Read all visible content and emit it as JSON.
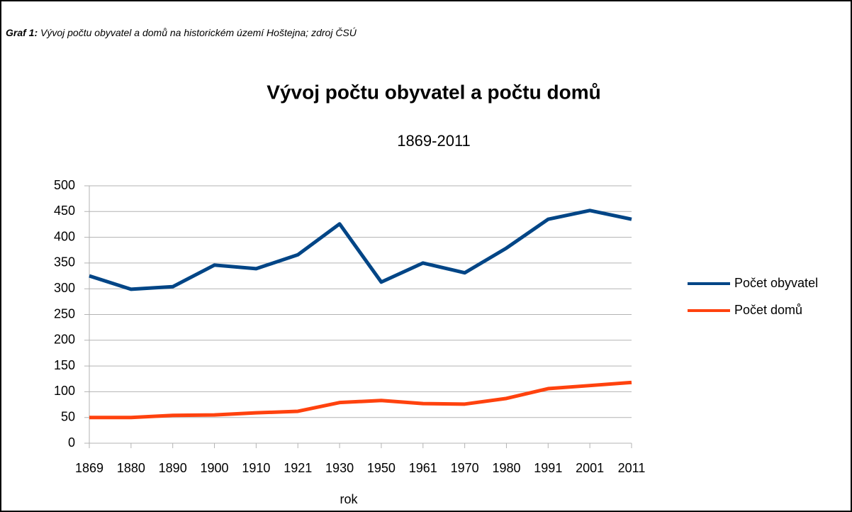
{
  "caption": {
    "label": "Graf 1:",
    "text": "Vývoj počtu obyvatel a domů na historickém území Hoštejna; zdroj ČSÚ"
  },
  "chart_data": {
    "type": "line",
    "title": "Vývoj počtu obyvatel a počtu domů",
    "subtitle": "1869-2011",
    "x_label": "rok",
    "categories": [
      "1869",
      "1880",
      "1890",
      "1900",
      "1910",
      "1921",
      "1930",
      "1950",
      "1961",
      "1970",
      "1980",
      "1991",
      "2001",
      "2011"
    ],
    "series": [
      {
        "name": "Počet obyvatel",
        "color": "#004586",
        "values": [
          325,
          299,
          304,
          346,
          339,
          366,
          426,
          313,
          350,
          331,
          379,
          435,
          452,
          435
        ]
      },
      {
        "name": "Počet domů",
        "color": "#ff420e",
        "values": [
          50,
          50,
          54,
          55,
          59,
          62,
          79,
          83,
          77,
          76,
          87,
          106,
          112,
          118
        ]
      }
    ],
    "ylim": [
      0,
      500
    ],
    "yticks": [
      0,
      50,
      100,
      150,
      200,
      250,
      300,
      350,
      400,
      450,
      500
    ],
    "grid": true,
    "legend": "right"
  }
}
